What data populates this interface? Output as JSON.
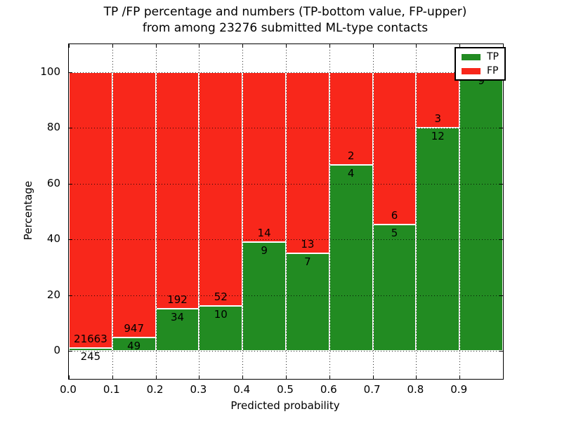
{
  "title": {
    "line1": "TP /FP percentage and numbers (TP-bottom value, FP-upper)",
    "line2": "from among 23276 submitted ML-type contacts"
  },
  "axes": {
    "xlabel": "Predicted probability",
    "ylabel": "Percentage",
    "xticks": [
      "0.0",
      "0.1",
      "0.2",
      "0.3",
      "0.4",
      "0.5",
      "0.6",
      "0.7",
      "0.8",
      "0.9"
    ],
    "yticks": [
      "0",
      "20",
      "40",
      "60",
      "80",
      "100"
    ],
    "xlim": [
      0.0,
      1.0
    ],
    "ylim": [
      -10,
      110
    ],
    "grid": "dotted"
  },
  "legend": {
    "position": "upper right",
    "items": [
      {
        "label": "TP",
        "color": "#228b22"
      },
      {
        "label": "FP",
        "color": "#f8271b"
      }
    ]
  },
  "colors": {
    "tp_green": "#228b22",
    "fp_red": "#f8271b",
    "bar_edge": "#ffffff",
    "text": "#000000"
  },
  "chart_data": {
    "type": "bar",
    "stacked": true,
    "normalized_to_percent": true,
    "title": "TP /FP percentage and numbers (TP-bottom value, FP-upper) from among 23276 submitted ML-type contacts",
    "xlabel": "Predicted probability",
    "ylabel": "Percentage",
    "xlim": [
      0.0,
      1.0
    ],
    "ylim": [
      -10,
      110
    ],
    "categories": [
      "0.0-0.1",
      "0.1-0.2",
      "0.2-0.3",
      "0.3-0.4",
      "0.4-0.5",
      "0.5-0.6",
      "0.6-0.7",
      "0.7-0.8",
      "0.8-0.9",
      "0.9-1.0"
    ],
    "series": [
      {
        "name": "TP",
        "color": "#228b22",
        "values": [
          245,
          49,
          34,
          10,
          9,
          7,
          4,
          5,
          12,
          9
        ]
      },
      {
        "name": "FP",
        "color": "#f8271b",
        "values": [
          21663,
          947,
          192,
          52,
          14,
          13,
          2,
          6,
          3,
          0
        ]
      }
    ],
    "tp_percent": [
      1.12,
      4.92,
      15.04,
      16.13,
      39.13,
      35.0,
      66.67,
      45.45,
      80.0,
      100.0
    ],
    "bar_labels": {
      "fp": [
        "21663",
        "947",
        "192",
        "52",
        "14",
        "13",
        "2",
        "6",
        "3",
        ""
      ],
      "tp": [
        "245",
        "49",
        "34",
        "10",
        "9",
        "7",
        "4",
        "5",
        "12",
        "9"
      ]
    },
    "total_contacts": 23276,
    "legend_entries": [
      "TP",
      "FP"
    ],
    "legend_position": "upper right",
    "grid": "dotted"
  }
}
